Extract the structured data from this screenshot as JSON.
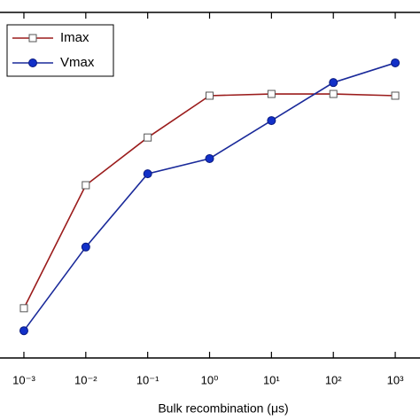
{
  "chart_data": {
    "type": "line",
    "xlabel": "Bulk recombination (μs)",
    "xscale": "log",
    "xlim": [
      0.000411,
      2512
    ],
    "xticks": [
      {
        "value": 0.001,
        "label": "10⁻³"
      },
      {
        "value": 0.01,
        "label": "10⁻²"
      },
      {
        "value": 0.1,
        "label": "10⁻¹"
      },
      {
        "value": 1,
        "label": "10⁰"
      },
      {
        "value": 10,
        "label": "10¹"
      },
      {
        "value": 100,
        "label": "10²"
      },
      {
        "value": 1000,
        "label": "10³"
      }
    ],
    "ylim": [
      0,
      1
    ],
    "x": [
      0.001,
      0.01,
      0.1,
      1,
      10,
      100,
      1000
    ],
    "legend": "upper left",
    "series": [
      {
        "name": "Imax",
        "color": "#9b1c1c",
        "marker": "square",
        "values": [
          0.144,
          0.5,
          0.638,
          0.759,
          0.764,
          0.764,
          0.759
        ]
      },
      {
        "name": "Vmax",
        "color": "#1a2a9a",
        "marker": "circle",
        "values": [
          0.079,
          0.321,
          0.533,
          0.577,
          0.687,
          0.797,
          0.854
        ]
      }
    ]
  }
}
